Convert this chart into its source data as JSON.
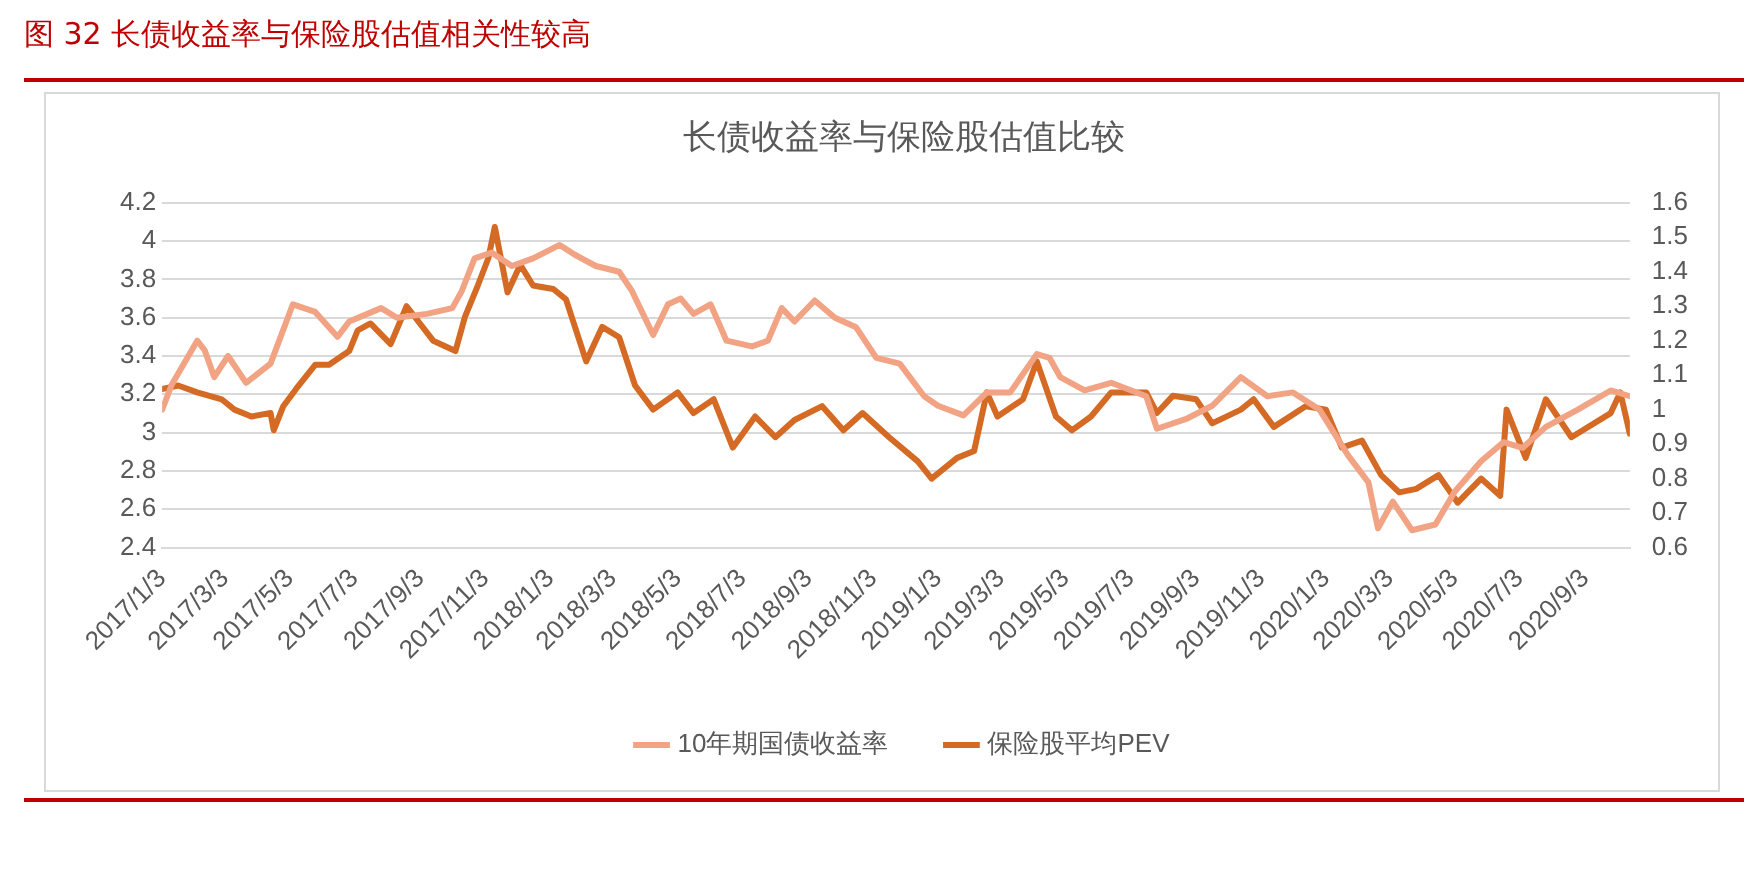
{
  "chart_data": {
    "type": "line",
    "title": "图 32  长债收益率与保险股估值相关性较高",
    "subtitle": "长债收益率与保险股估值比较",
    "xlim": [
      "2017-01-03",
      "2020-10-15"
    ],
    "xticks": [
      {
        "value": "2017-01-03",
        "label": "2017/1/3"
      },
      {
        "value": "2017-03-03",
        "label": "2017/3/3"
      },
      {
        "value": "2017-05-03",
        "label": "2017/5/3"
      },
      {
        "value": "2017-07-03",
        "label": "2017/7/3"
      },
      {
        "value": "2017-09-03",
        "label": "2017/9/3"
      },
      {
        "value": "2017-11-03",
        "label": "2017/11/3"
      },
      {
        "value": "2018-01-03",
        "label": "2018/1/3"
      },
      {
        "value": "2018-03-03",
        "label": "2018/3/3"
      },
      {
        "value": "2018-05-03",
        "label": "2018/5/3"
      },
      {
        "value": "2018-07-03",
        "label": "2018/7/3"
      },
      {
        "value": "2018-09-03",
        "label": "2018/9/3"
      },
      {
        "value": "2018-11-03",
        "label": "2018/11/3"
      },
      {
        "value": "2019-01-03",
        "label": "2019/1/3"
      },
      {
        "value": "2019-03-03",
        "label": "2019/3/3"
      },
      {
        "value": "2019-05-03",
        "label": "2019/5/3"
      },
      {
        "value": "2019-07-03",
        "label": "2019/7/3"
      },
      {
        "value": "2019-09-03",
        "label": "2019/9/3"
      },
      {
        "value": "2019-11-03",
        "label": "2019/11/3"
      },
      {
        "value": "2020-01-03",
        "label": "2020/1/3"
      },
      {
        "value": "2020-03-03",
        "label": "2020/3/3"
      },
      {
        "value": "2020-05-03",
        "label": "2020/5/3"
      },
      {
        "value": "2020-07-03",
        "label": "2020/7/3"
      },
      {
        "value": "2020-09-03",
        "label": "2020/9/3"
      }
    ],
    "ylim": [
      2.4,
      4.2
    ],
    "yticks": [
      2.4,
      2.6,
      2.8,
      3,
      3.2,
      3.4,
      3.6,
      3.8,
      4,
      4.2
    ],
    "y2lim": [
      0.6,
      1.6
    ],
    "y2ticks": [
      0.6,
      0.7,
      0.8,
      0.9,
      1,
      1.1,
      1.2,
      1.3,
      1.4,
      1.5,
      1.6
    ],
    "grid": "y",
    "legend": "bottom",
    "series": [
      {
        "name": "10年期国债收益率",
        "color": "#f2a383",
        "x": [
          "2017-01-03",
          "2017-01-12",
          "2017-02-05",
          "2017-02-12",
          "2017-02-21",
          "2017-03-06",
          "2017-03-23",
          "2017-04-15",
          "2017-05-06",
          "2017-05-27",
          "2017-06-17",
          "2017-06-28",
          "2017-07-28",
          "2017-08-12",
          "2017-09-09",
          "2017-10-03",
          "2017-10-12",
          "2017-10-24",
          "2017-11-09",
          "2017-11-28",
          "2017-12-18",
          "2018-01-12",
          "2018-01-26",
          "2018-02-15",
          "2018-03-09",
          "2018-03-21",
          "2018-04-10",
          "2018-04-24",
          "2018-05-06",
          "2018-05-18",
          "2018-06-03",
          "2018-06-18",
          "2018-07-12",
          "2018-07-27",
          "2018-08-09",
          "2018-08-21",
          "2018-09-09",
          "2018-09-28",
          "2018-10-18",
          "2018-11-06",
          "2018-11-28",
          "2018-12-21",
          "2019-01-03",
          "2019-01-27",
          "2019-02-18",
          "2019-03-12",
          "2019-04-06",
          "2019-04-18",
          "2019-04-28",
          "2019-05-21",
          "2019-06-15",
          "2019-07-18",
          "2019-07-28",
          "2019-08-24",
          "2019-09-18",
          "2019-10-15",
          "2019-11-09",
          "2019-12-03",
          "2019-12-28",
          "2020-01-24",
          "2020-02-12",
          "2020-02-21",
          "2020-03-06",
          "2020-03-24",
          "2020-04-15",
          "2020-05-03",
          "2020-05-28",
          "2020-06-18",
          "2020-07-06",
          "2020-07-28",
          "2020-08-27",
          "2020-09-27",
          "2020-10-15"
        ],
        "values": [
          3.12,
          3.25,
          3.48,
          3.43,
          3.29,
          3.4,
          3.26,
          3.36,
          3.67,
          3.63,
          3.5,
          3.58,
          3.65,
          3.6,
          3.62,
          3.65,
          3.74,
          3.91,
          3.94,
          3.87,
          3.91,
          3.98,
          3.93,
          3.87,
          3.84,
          3.74,
          3.51,
          3.67,
          3.7,
          3.62,
          3.67,
          3.48,
          3.45,
          3.48,
          3.65,
          3.58,
          3.69,
          3.6,
          3.55,
          3.39,
          3.36,
          3.19,
          3.14,
          3.09,
          3.21,
          3.21,
          3.41,
          3.39,
          3.29,
          3.22,
          3.26,
          3.19,
          3.02,
          3.07,
          3.14,
          3.29,
          3.19,
          3.21,
          3.12,
          2.88,
          2.74,
          2.5,
          2.64,
          2.49,
          2.52,
          2.69,
          2.85,
          2.95,
          2.92,
          3.03,
          3.12,
          3.22,
          3.19
        ]
      },
      {
        "name": "保险股平均PEV",
        "color": "#d46a24",
        "axis": "y2",
        "x": [
          "2017-01-03",
          "2017-01-18",
          "2017-02-05",
          "2017-02-28",
          "2017-03-12",
          "2017-03-28",
          "2017-04-15",
          "2017-04-18",
          "2017-04-27",
          "2017-05-09",
          "2017-05-27",
          "2017-06-09",
          "2017-06-28",
          "2017-07-06",
          "2017-07-18",
          "2017-08-06",
          "2017-08-21",
          "2017-09-15",
          "2017-10-06",
          "2017-10-15",
          "2017-10-27",
          "2017-11-06",
          "2017-11-12",
          "2017-11-24",
          "2017-12-06",
          "2017-12-18",
          "2018-01-06",
          "2018-01-18",
          "2018-02-06",
          "2018-02-21",
          "2018-03-09",
          "2018-03-24",
          "2018-04-10",
          "2018-05-03",
          "2018-05-18",
          "2018-06-06",
          "2018-06-24",
          "2018-07-15",
          "2018-08-03",
          "2018-08-21",
          "2018-09-16",
          "2018-10-06",
          "2018-10-24",
          "2018-11-18",
          "2018-12-15",
          "2018-12-28",
          "2019-01-21",
          "2019-02-06",
          "2019-02-18",
          "2019-02-28",
          "2019-03-24",
          "2019-04-06",
          "2019-04-24",
          "2019-05-09",
          "2019-05-27",
          "2019-06-15",
          "2019-07-18",
          "2019-07-28",
          "2019-08-12",
          "2019-09-03",
          "2019-09-18",
          "2019-10-15",
          "2019-10-27",
          "2019-11-15",
          "2019-12-15",
          "2020-01-03",
          "2020-01-18",
          "2020-02-06",
          "2020-02-24",
          "2020-03-12",
          "2020-03-28",
          "2020-04-18",
          "2020-05-06",
          "2020-05-28",
          "2020-06-15",
          "2020-06-21",
          "2020-07-09",
          "2020-07-28",
          "2020-08-21",
          "2020-09-27",
          "2020-10-06",
          "2020-10-15"
        ],
        "values": [
          1.06,
          1.07,
          1.05,
          1.03,
          1.0,
          0.98,
          0.99,
          0.94,
          1.01,
          1.06,
          1.13,
          1.13,
          1.17,
          1.23,
          1.25,
          1.19,
          1.3,
          1.2,
          1.17,
          1.27,
          1.36,
          1.44,
          1.53,
          1.34,
          1.42,
          1.36,
          1.35,
          1.32,
          1.14,
          1.24,
          1.21,
          1.07,
          1.0,
          1.05,
          0.99,
          1.03,
          0.89,
          0.98,
          0.92,
          0.97,
          1.01,
          0.94,
          0.99,
          0.92,
          0.85,
          0.8,
          0.86,
          0.88,
          1.05,
          0.98,
          1.03,
          1.14,
          0.98,
          0.94,
          0.98,
          1.05,
          1.05,
          0.99,
          1.04,
          1.03,
          0.96,
          1.0,
          1.03,
          0.95,
          1.01,
          1.0,
          0.89,
          0.91,
          0.81,
          0.76,
          0.77,
          0.81,
          0.73,
          0.8,
          0.75,
          1.0,
          0.86,
          1.03,
          0.92,
          0.99,
          1.05,
          0.93
        ]
      }
    ]
  }
}
